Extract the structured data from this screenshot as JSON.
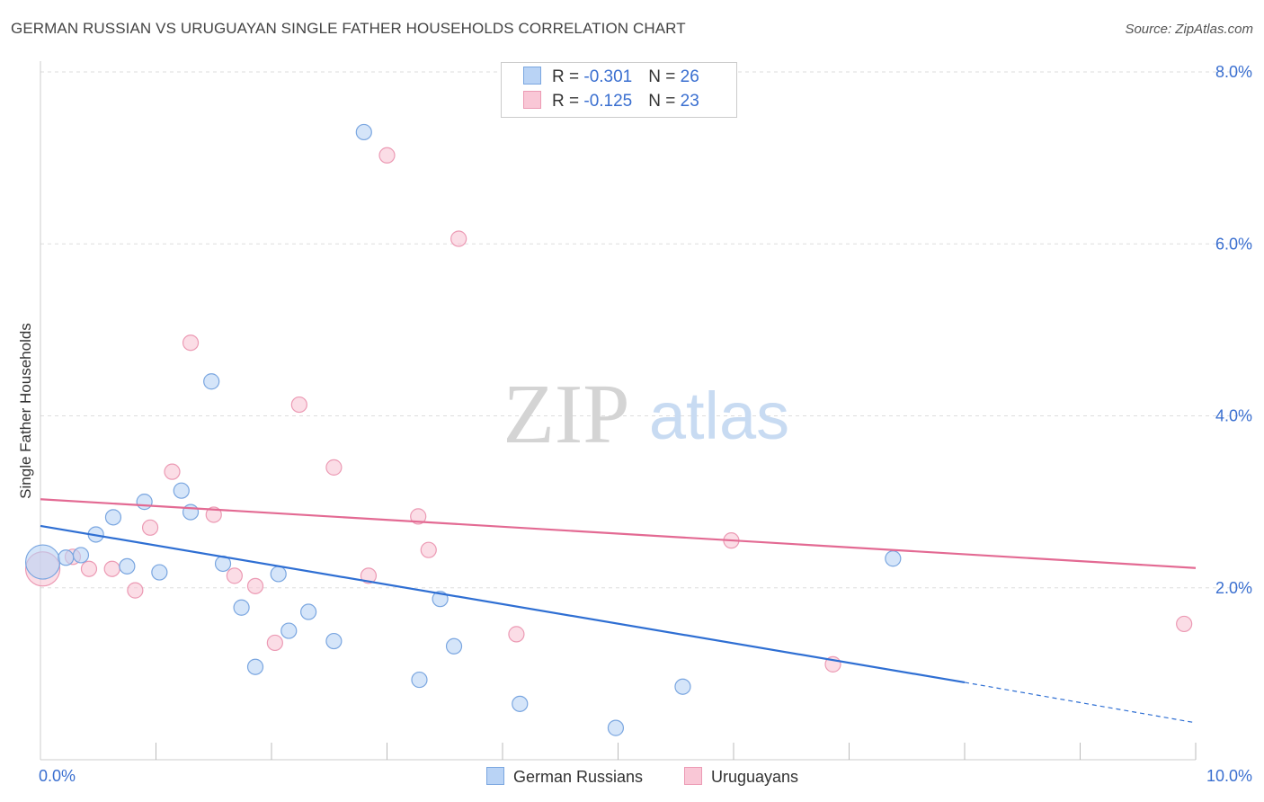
{
  "title": "GERMAN RUSSIAN VS URUGUAYAN SINGLE FATHER HOUSEHOLDS CORRELATION CHART",
  "source": "Source: ZipAtlas.com",
  "watermark": {
    "part1": "ZIP",
    "part2": "atlas"
  },
  "legend": {
    "rows": [
      {
        "r_label": "R = ",
        "r_value": "-0.301",
        "n_label": "N = ",
        "n_value": "26"
      },
      {
        "r_label": "R = ",
        "r_value": "-0.125",
        "n_label": "N = ",
        "n_value": "23"
      }
    ]
  },
  "bottom_legend": {
    "series1": "German Russians",
    "series2": "Uruguayans"
  },
  "colors": {
    "series1_fill": "#b9d3f5",
    "series1_stroke": "#7aa6e0",
    "series1_line": "#2f6fd3",
    "series2_fill": "#f9c7d6",
    "series2_stroke": "#ec9ab4",
    "series2_line": "#e36a93",
    "tick_label": "#3a6fd0",
    "grid": "#dddddd"
  },
  "chart_data": {
    "type": "scatter",
    "title": "GERMAN RUSSIAN VS URUGUAYAN SINGLE FATHER HOUSEHOLDS CORRELATION CHART",
    "xlabel": "",
    "ylabel": "Single Father Households",
    "xlim": [
      0,
      10
    ],
    "ylim": [
      0,
      8.0
    ],
    "x_tick_labels": [
      "0.0%",
      "10.0%"
    ],
    "y_ticks": [
      2.0,
      4.0,
      6.0,
      8.0
    ],
    "y_tick_labels": [
      "2.0%",
      "4.0%",
      "6.0%",
      "8.0%"
    ],
    "grid": true,
    "series": [
      {
        "name": "German Russians",
        "r": -0.301,
        "n": 26,
        "points": [
          {
            "x": 0.02,
            "y": 2.3,
            "big": true
          },
          {
            "x": 0.22,
            "y": 2.35
          },
          {
            "x": 0.35,
            "y": 2.38
          },
          {
            "x": 0.48,
            "y": 2.62
          },
          {
            "x": 0.63,
            "y": 2.82
          },
          {
            "x": 0.75,
            "y": 2.25
          },
          {
            "x": 0.9,
            "y": 3.0
          },
          {
            "x": 1.03,
            "y": 2.18
          },
          {
            "x": 1.22,
            "y": 3.13
          },
          {
            "x": 1.3,
            "y": 2.88
          },
          {
            "x": 1.48,
            "y": 4.4
          },
          {
            "x": 1.58,
            "y": 2.28
          },
          {
            "x": 1.74,
            "y": 1.77
          },
          {
            "x": 1.86,
            "y": 1.08
          },
          {
            "x": 2.06,
            "y": 2.16
          },
          {
            "x": 2.15,
            "y": 1.5
          },
          {
            "x": 2.32,
            "y": 1.72
          },
          {
            "x": 2.54,
            "y": 1.38
          },
          {
            "x": 2.8,
            "y": 7.3
          },
          {
            "x": 3.28,
            "y": 0.93
          },
          {
            "x": 3.46,
            "y": 1.87
          },
          {
            "x": 3.58,
            "y": 1.32
          },
          {
            "x": 4.15,
            "y": 0.65
          },
          {
            "x": 4.98,
            "y": 0.37
          },
          {
            "x": 5.56,
            "y": 0.85
          },
          {
            "x": 7.38,
            "y": 2.34
          }
        ],
        "trend": {
          "x0": 0,
          "y0": 2.72,
          "x1": 8.0,
          "y1": 0.9,
          "dashed_to_x": 10.0,
          "dashed_to_y": 0.43
        }
      },
      {
        "name": "Uruguayans",
        "r": -0.125,
        "n": 23,
        "points": [
          {
            "x": 0.02,
            "y": 2.22,
            "big": true
          },
          {
            "x": 0.28,
            "y": 2.36
          },
          {
            "x": 0.42,
            "y": 2.22
          },
          {
            "x": 0.62,
            "y": 2.22
          },
          {
            "x": 0.82,
            "y": 1.97
          },
          {
            "x": 0.95,
            "y": 2.7
          },
          {
            "x": 1.14,
            "y": 3.35
          },
          {
            "x": 1.3,
            "y": 4.85
          },
          {
            "x": 1.5,
            "y": 2.85
          },
          {
            "x": 1.68,
            "y": 2.14
          },
          {
            "x": 1.86,
            "y": 2.02
          },
          {
            "x": 2.03,
            "y": 1.36
          },
          {
            "x": 2.24,
            "y": 4.13
          },
          {
            "x": 2.54,
            "y": 3.4
          },
          {
            "x": 2.84,
            "y": 2.14
          },
          {
            "x": 3.0,
            "y": 7.03
          },
          {
            "x": 3.27,
            "y": 2.83
          },
          {
            "x": 3.36,
            "y": 2.44
          },
          {
            "x": 3.62,
            "y": 6.06
          },
          {
            "x": 4.12,
            "y": 1.46
          },
          {
            "x": 5.98,
            "y": 2.55
          },
          {
            "x": 6.86,
            "y": 1.11
          },
          {
            "x": 9.9,
            "y": 1.58
          }
        ],
        "trend": {
          "x0": 0,
          "y0": 3.03,
          "x1": 10.0,
          "y1": 2.23
        }
      }
    ]
  }
}
